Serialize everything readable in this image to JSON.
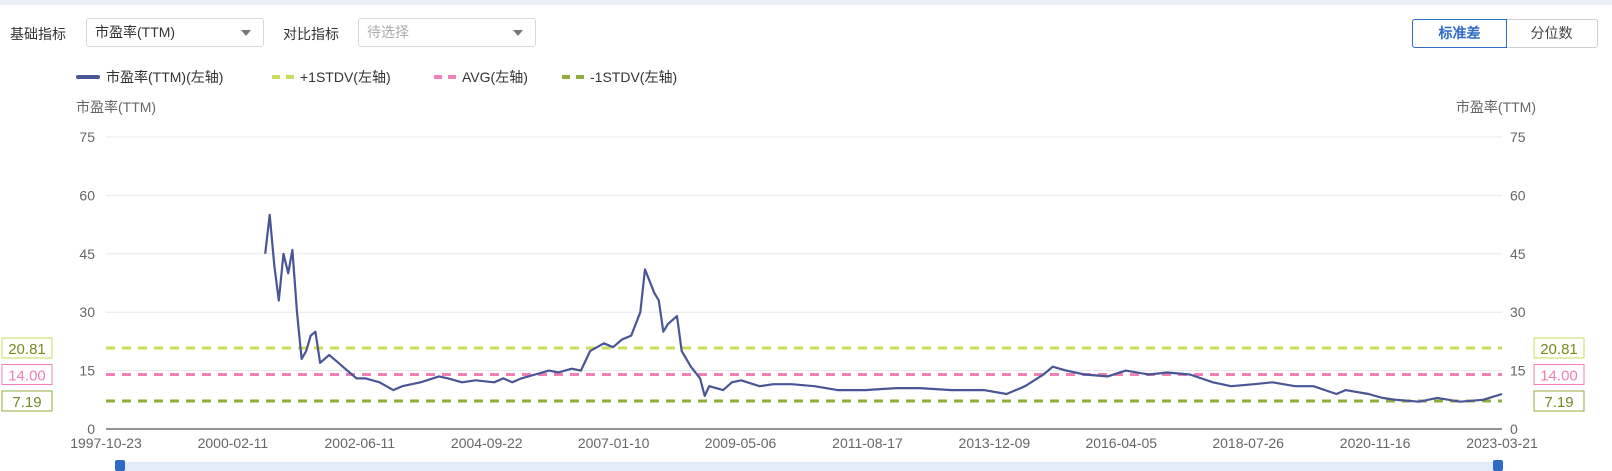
{
  "controls": {
    "base_label": "基础指标",
    "base_value": "市盈率(TTM)",
    "compare_label": "对比指标",
    "compare_placeholder": "待选择",
    "mode_buttons": [
      {
        "label": "标准差",
        "active": true
      },
      {
        "label": "分位数",
        "active": false
      }
    ]
  },
  "colors": {
    "series": "#4a5596",
    "plus1": "#c9dc5c",
    "avg": "#f27fb5",
    "minus1": "#8fae3b",
    "accent": "#2d6bc7"
  },
  "chart_data": {
    "type": "line",
    "legend": [
      "市盈率(TTM)(左轴)",
      "+1STDV(左轴)",
      "AVG(左轴)",
      "-1STDV(左轴)"
    ],
    "legend_placement": "top-left",
    "ylabel_left": "市盈率(TTM)",
    "ylabel_right": "市盈率(TTM)",
    "ylim": [
      0,
      75
    ],
    "yticks": [
      "0",
      "15",
      "30",
      "45",
      "60",
      "75"
    ],
    "grid": true,
    "xrange": [
      "1997-10-23",
      "2023-03-21"
    ],
    "xticks": [
      "1997-10-23",
      "2000-02-11",
      "2002-06-11",
      "2004-09-22",
      "2007-01-10",
      "2009-05-06",
      "2011-08-17",
      "2013-12-09",
      "2016-04-05",
      "2018-07-26",
      "2020-11-16",
      "2023-03-21"
    ],
    "reference_lines": [
      {
        "name": "+1STDV(左轴)",
        "value": 20.81,
        "label": "20.81"
      },
      {
        "name": "AVG(左轴)",
        "value": 14.0,
        "label": "14.00"
      },
      {
        "name": "-1STDV(左轴)",
        "value": 7.19,
        "label": "7.19"
      }
    ],
    "series": [
      {
        "name": "市盈率(TTM)(左轴)",
        "points": [
          [
            "2000-09",
            45
          ],
          [
            "2000-10",
            55
          ],
          [
            "2000-11",
            42
          ],
          [
            "2000-12",
            33
          ],
          [
            "2001-01",
            45
          ],
          [
            "2001-02",
            40
          ],
          [
            "2001-03",
            46
          ],
          [
            "2001-04",
            30
          ],
          [
            "2001-05",
            18
          ],
          [
            "2001-06",
            20
          ],
          [
            "2001-07",
            24
          ],
          [
            "2001-08",
            25
          ],
          [
            "2001-09",
            17
          ],
          [
            "2001-11",
            19
          ],
          [
            "2002-01",
            17
          ],
          [
            "2002-03",
            15
          ],
          [
            "2002-05",
            13
          ],
          [
            "2002-07",
            13
          ],
          [
            "2002-10",
            12
          ],
          [
            "2003-01",
            10
          ],
          [
            "2003-03",
            11
          ],
          [
            "2003-07",
            12
          ],
          [
            "2003-11",
            13.5
          ],
          [
            "2004-01",
            13
          ],
          [
            "2004-04",
            12
          ],
          [
            "2004-07",
            12.5
          ],
          [
            "2004-11",
            12
          ],
          [
            "2005-01",
            13
          ],
          [
            "2005-03",
            12
          ],
          [
            "2005-05",
            13
          ],
          [
            "2005-08",
            14
          ],
          [
            "2005-11",
            15
          ],
          [
            "2006-01",
            14.5
          ],
          [
            "2006-04",
            15.5
          ],
          [
            "2006-06",
            15
          ],
          [
            "2006-08",
            20
          ],
          [
            "2006-11",
            22
          ],
          [
            "2007-01",
            21
          ],
          [
            "2007-03",
            23
          ],
          [
            "2007-05",
            24
          ],
          [
            "2007-07",
            30
          ],
          [
            "2007-08",
            41
          ],
          [
            "2007-10",
            35
          ],
          [
            "2007-11",
            33
          ],
          [
            "2007-12",
            25
          ],
          [
            "2008-01",
            27
          ],
          [
            "2008-03",
            29
          ],
          [
            "2008-04",
            20
          ],
          [
            "2008-06",
            16
          ],
          [
            "2008-08",
            13
          ],
          [
            "2008-09",
            8.5
          ],
          [
            "2008-10",
            11
          ],
          [
            "2009-01",
            10
          ],
          [
            "2009-03",
            12
          ],
          [
            "2009-05",
            12.5
          ],
          [
            "2009-09",
            11
          ],
          [
            "2009-12",
            11.5
          ],
          [
            "2010-04",
            11.5
          ],
          [
            "2010-09",
            11
          ],
          [
            "2011-02",
            10
          ],
          [
            "2011-08",
            10
          ],
          [
            "2012-03",
            10.5
          ],
          [
            "2012-08",
            10.5
          ],
          [
            "2013-03",
            10
          ],
          [
            "2013-10",
            10
          ],
          [
            "2014-03",
            9
          ],
          [
            "2014-07",
            11
          ],
          [
            "2014-09",
            12.5
          ],
          [
            "2014-11",
            14
          ],
          [
            "2015-01",
            16
          ],
          [
            "2015-04",
            15
          ],
          [
            "2015-08",
            14
          ],
          [
            "2016-01",
            13.5
          ],
          [
            "2016-05",
            15
          ],
          [
            "2016-10",
            14
          ],
          [
            "2017-02",
            14.5
          ],
          [
            "2017-07",
            14
          ],
          [
            "2017-12",
            12
          ],
          [
            "2018-04",
            11
          ],
          [
            "2018-09",
            11.5
          ],
          [
            "2019-01",
            12
          ],
          [
            "2019-06",
            11
          ],
          [
            "2019-10",
            11
          ],
          [
            "2020-03",
            9
          ],
          [
            "2020-05",
            10
          ],
          [
            "2020-10",
            9
          ],
          [
            "2021-01",
            8
          ],
          [
            "2021-04",
            7.5
          ],
          [
            "2021-09",
            7
          ],
          [
            "2022-01",
            8
          ],
          [
            "2022-06",
            7
          ],
          [
            "2022-11",
            7.5
          ],
          [
            "2023-03-21",
            9
          ]
        ]
      }
    ]
  }
}
